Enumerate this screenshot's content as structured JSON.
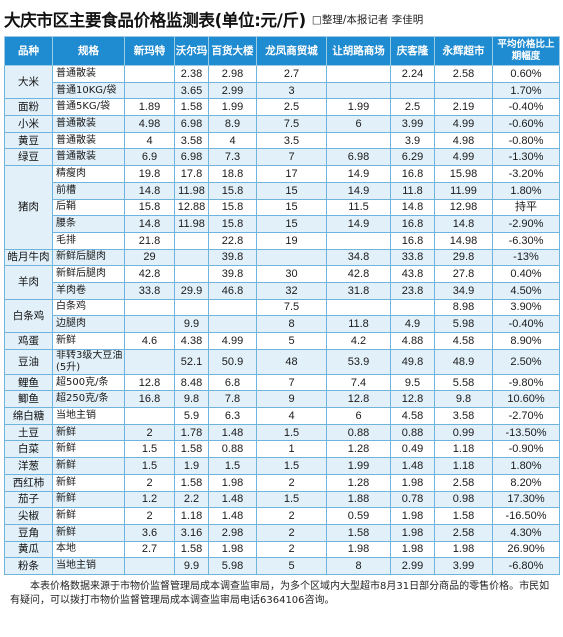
{
  "title": "大庆市区主要食品价格监测表(单位:元/斤)",
  "byline": "□整理/本报记者  李佳明",
  "headers": [
    "品种",
    "规格",
    "新玛特",
    "沃尔玛",
    "百货大楼",
    "龙凤商贸城",
    "让胡路商场",
    "庆客隆",
    "永辉超市",
    "平均价格比上期幅度"
  ],
  "rows": [
    {
      "cat": "大米",
      "span": 2,
      "cells": [
        "普通散装",
        "",
        "2.38",
        "2.98",
        "2.7",
        "",
        "2.24",
        "2.58",
        "0.60%"
      ]
    },
    {
      "cells": [
        "普通10KG/袋",
        "",
        "3.65",
        "2.99",
        "3",
        "",
        "",
        "",
        "1.70%"
      ]
    },
    {
      "cat": "面粉",
      "span": 1,
      "cells": [
        "普通5KG/袋",
        "1.89",
        "1.58",
        "1.99",
        "2.5",
        "1.99",
        "2.5",
        "2.19",
        "-0.40%"
      ]
    },
    {
      "cat": "小米",
      "span": 1,
      "cells": [
        "普通散装",
        "4.98",
        "6.98",
        "8.9",
        "7.5",
        "6",
        "3.99",
        "4.99",
        "-0.60%"
      ]
    },
    {
      "cat": "黄豆",
      "span": 1,
      "cells": [
        "普通散装",
        "4",
        "3.58",
        "4",
        "3.5",
        "",
        "3.9",
        "4.98",
        "-0.80%"
      ]
    },
    {
      "cat": "绿豆",
      "span": 1,
      "cells": [
        "普通散装",
        "6.9",
        "6.98",
        "7.3",
        "7",
        "6.98",
        "6.29",
        "4.99",
        "-1.30%"
      ]
    },
    {
      "cat": "猪肉",
      "span": 5,
      "cells": [
        "精瘦肉",
        "19.8",
        "17.8",
        "18.8",
        "17",
        "14.9",
        "16.8",
        "15.98",
        "-3.20%"
      ]
    },
    {
      "cells": [
        "前槽",
        "14.8",
        "11.98",
        "15.8",
        "15",
        "14.9",
        "11.8",
        "11.99",
        "1.80%"
      ]
    },
    {
      "cells": [
        "后鞘",
        "15.8",
        "12.88",
        "15.8",
        "15",
        "11.5",
        "14.8",
        "12.98",
        "持平"
      ]
    },
    {
      "cells": [
        "腰条",
        "14.8",
        "11.98",
        "15.8",
        "15",
        "14.9",
        "16.8",
        "14.8",
        "-2.90%"
      ]
    },
    {
      "cells": [
        "毛排",
        "21.8",
        "",
        "22.8",
        "19",
        "",
        "16.8",
        "14.98",
        "-6.30%"
      ]
    },
    {
      "cat": "皓月牛肉",
      "span": 1,
      "cells": [
        "新鲜后腿肉",
        "29",
        "",
        "39.8",
        "",
        "34.8",
        "33.8",
        "29.8",
        "-13%"
      ]
    },
    {
      "cat": "羊肉",
      "span": 2,
      "cells": [
        "新鲜后腿肉",
        "42.8",
        "",
        "39.8",
        "30",
        "42.8",
        "43.8",
        "27.8",
        "0.40%"
      ]
    },
    {
      "cells": [
        "羊肉卷",
        "33.8",
        "29.9",
        "46.8",
        "32",
        "31.8",
        "23.8",
        "34.9",
        "4.50%"
      ]
    },
    {
      "cat": "白条鸡",
      "span": 2,
      "cells": [
        "白条鸡",
        "",
        "",
        "",
        "7.5",
        "",
        "",
        "8.98",
        "3.90%"
      ]
    },
    {
      "cells": [
        "边腿肉",
        "",
        "9.9",
        "",
        "8",
        "11.8",
        "4.9",
        "5.98",
        "-0.40%"
      ]
    },
    {
      "cat": "鸡蛋",
      "span": 1,
      "cells": [
        "新鲜",
        "4.6",
        "4.38",
        "4.99",
        "5",
        "4.2",
        "4.88",
        "4.58",
        "8.90%"
      ]
    },
    {
      "cat": "豆油",
      "span": 1,
      "wrap": true,
      "cells": [
        "非转3级大豆油(5升)",
        "",
        "52.1",
        "50.9",
        "48",
        "53.9",
        "49.8",
        "48.9",
        "2.50%"
      ]
    },
    {
      "cat": "鲤鱼",
      "span": 1,
      "cells": [
        "超500克/条",
        "12.8",
        "8.48",
        "6.8",
        "7",
        "7.4",
        "9.5",
        "5.58",
        "-9.80%"
      ]
    },
    {
      "cat": "鲫鱼",
      "span": 1,
      "cells": [
        "超250克/条",
        "16.8",
        "9.8",
        "7.8",
        "9",
        "12.8",
        "12.8",
        "9.8",
        "10.60%"
      ]
    },
    {
      "cat": "绵白糖",
      "span": 1,
      "cells": [
        "当地主销",
        "",
        "5.9",
        "6.3",
        "4",
        "6",
        "4.58",
        "3.58",
        "-2.70%"
      ]
    },
    {
      "cat": "土豆",
      "span": 1,
      "cells": [
        "新鲜",
        "2",
        "1.78",
        "1.48",
        "1.5",
        "0.88",
        "0.88",
        "0.99",
        "-13.50%"
      ]
    },
    {
      "cat": "白菜",
      "span": 1,
      "cells": [
        "新鲜",
        "1.5",
        "1.58",
        "0.88",
        "1",
        "1.28",
        "0.49",
        "1.18",
        "-0.90%"
      ]
    },
    {
      "cat": "洋葱",
      "span": 1,
      "cells": [
        "新鲜",
        "1.5",
        "1.9",
        "1.5",
        "1.5",
        "1.99",
        "1.48",
        "1.18",
        "1.80%"
      ]
    },
    {
      "cat": "西红柿",
      "span": 1,
      "cells": [
        "新鲜",
        "2",
        "1.58",
        "1.98",
        "2",
        "1.28",
        "1.98",
        "2.58",
        "8.20%"
      ]
    },
    {
      "cat": "茄子",
      "span": 1,
      "cells": [
        "新鲜",
        "1.2",
        "2.2",
        "1.48",
        "1.5",
        "1.88",
        "0.78",
        "0.98",
        "17.30%"
      ]
    },
    {
      "cat": "尖椒",
      "span": 1,
      "cells": [
        "新鲜",
        "2",
        "1.18",
        "1.48",
        "2",
        "0.59",
        "1.98",
        "1.58",
        "-16.50%"
      ]
    },
    {
      "cat": "豆角",
      "span": 1,
      "cells": [
        "新鲜",
        "3.6",
        "3.16",
        "2.98",
        "2",
        "1.58",
        "1.98",
        "2.58",
        "4.30%"
      ]
    },
    {
      "cat": "黄瓜",
      "span": 1,
      "cells": [
        "本地",
        "2.7",
        "1.58",
        "1.98",
        "2",
        "1.98",
        "1.98",
        "1.98",
        "26.90%"
      ]
    },
    {
      "cat": "粉条",
      "span": 1,
      "cells": [
        "当地主销",
        "",
        "9.9",
        "5.98",
        "5",
        "8",
        "2.99",
        "3.99",
        "-6.80%"
      ]
    }
  ],
  "footer": "本表价格数据来源于市物价监督管理局成本调查监审局，为多个区域内大型超市8月31日部分商品的零售价格。市民如有疑问，可以拨打市物价监督管理局成本调查监审局电话6364106咨询。"
}
